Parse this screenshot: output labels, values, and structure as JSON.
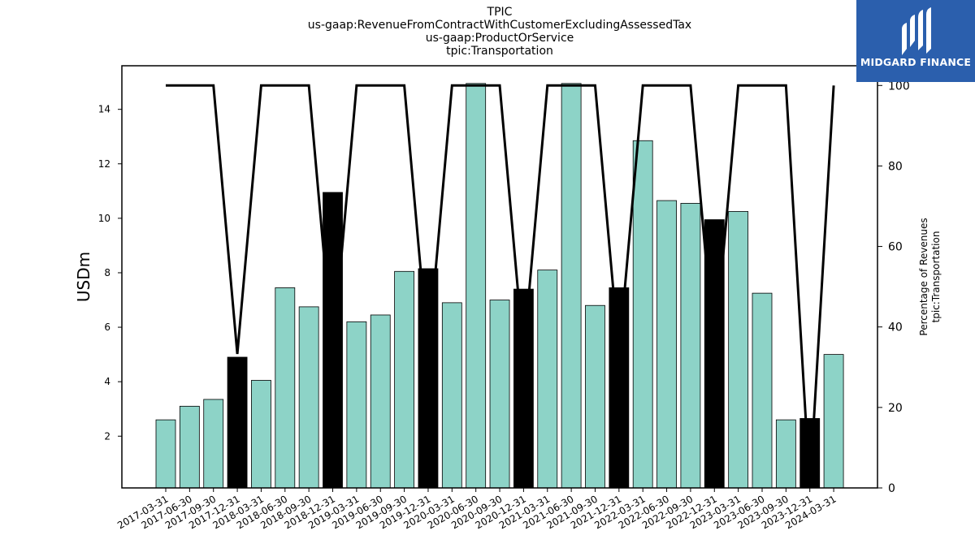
{
  "header": {
    "title_lines": [
      "TPIC",
      "us-gaap:RevenueFromContractWithCustomerExcludingAssessedTax",
      "us-gaap:ProductOrService",
      "tpic:Transportation"
    ]
  },
  "logo": {
    "text": "MIDGARD FINANCE",
    "icon": "midgard-logo-icon",
    "background": "#2b5fad"
  },
  "colors": {
    "bar_normal": "#8dd3c7",
    "bar_q4": "#000000",
    "line": "#000000"
  },
  "chart_data": {
    "type": "bar",
    "categories": [
      "2017-03-31",
      "2017-06-30",
      "2017-09-30",
      "2017-12-31",
      "2018-03-31",
      "2018-06-30",
      "2018-09-30",
      "2018-12-31",
      "2019-03-31",
      "2019-06-30",
      "2019-09-30",
      "2019-12-31",
      "2020-03-31",
      "2020-06-30",
      "2020-09-30",
      "2020-12-31",
      "2021-03-31",
      "2021-06-30",
      "2021-09-30",
      "2021-12-31",
      "2022-03-31",
      "2022-06-30",
      "2022-09-30",
      "2022-12-31",
      "2023-03-31",
      "2023-06-30",
      "2023-09-30",
      "2023-12-31",
      "2024-03-31"
    ],
    "series": [
      {
        "values": [
          2.6,
          3.1,
          3.35,
          4.9,
          4.05,
          7.45,
          6.75,
          10.95,
          6.2,
          6.45,
          8.05,
          8.15,
          6.9,
          14.95,
          7.0,
          7.4,
          8.1,
          14.95,
          6.8,
          7.45,
          12.85,
          10.65,
          10.55,
          9.95,
          10.25,
          7.25,
          2.6,
          2.65,
          5.0
        ],
        "axis": "left"
      },
      {
        "values": [
          100,
          100,
          100,
          33.3,
          100,
          100,
          100,
          33.3,
          100,
          100,
          100,
          33.3,
          100,
          100,
          100,
          33.3,
          100,
          100,
          100,
          33.3,
          100,
          100,
          100,
          33.3,
          100,
          100,
          100,
          0,
          100
        ],
        "axis": "right"
      }
    ],
    "highlighted_indices": [
      3,
      7,
      11,
      15,
      19,
      23,
      27
    ],
    "ylabel": "USDm",
    "y2label_lines": [
      "Percentage of Revenues",
      "tpic:Transportation"
    ],
    "ylim": [
      0.1,
      15.6
    ],
    "y2lim": [
      0,
      104.9
    ],
    "yticks": [
      2,
      4,
      6,
      8,
      10,
      12,
      14
    ],
    "y2ticks": [
      0,
      20,
      40,
      60,
      80,
      100
    ],
    "grid": false
  }
}
